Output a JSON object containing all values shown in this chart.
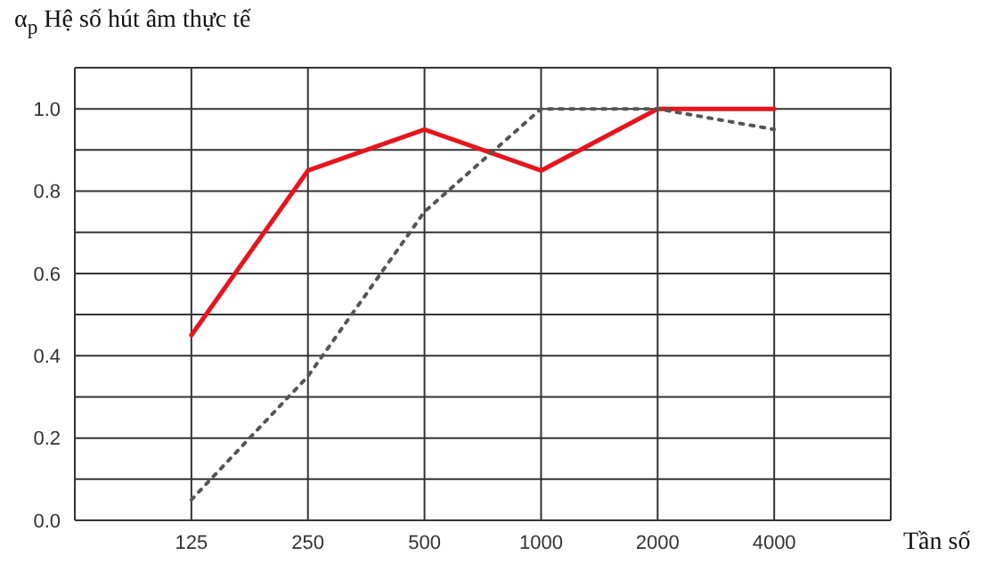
{
  "chart_data": {
    "type": "line",
    "ylabel": "α$_{p}$ Hệ số hút âm thực tế",
    "xlabel": "Tần số",
    "categories": [
      "125",
      "250",
      "500",
      "1000",
      "2000",
      "4000"
    ],
    "series": [
      {
        "color": "#e8141c",
        "line_style": "solid",
        "values": [
          0.45,
          0.85,
          0.95,
          0.85,
          1.0,
          1.0
        ]
      },
      {
        "color": "#555555",
        "line_style": "dotted",
        "values": [
          0.05,
          0.35,
          0.75,
          1.0,
          1.0,
          0.95
        ]
      }
    ],
    "ylim": [
      0,
      1.1
    ],
    "yticks": [
      {
        "value": 0,
        "label": "0.0"
      },
      {
        "value": 0.1,
        "label": null
      },
      {
        "value": 0.2,
        "label": "0.2"
      },
      {
        "value": 0.3,
        "label": null
      },
      {
        "value": 0.4,
        "label": "0.4"
      },
      {
        "value": 0.5,
        "label": null
      },
      {
        "value": 0.6,
        "label": "0.6"
      },
      {
        "value": 0.7,
        "label": null
      },
      {
        "value": 0.8,
        "label": "0.8"
      },
      {
        "value": 0.9,
        "label": null
      },
      {
        "value": 1.0,
        "label": "1.0"
      },
      {
        "value": 1.1,
        "label": null
      }
    ],
    "grid": true,
    "marker": "none"
  }
}
